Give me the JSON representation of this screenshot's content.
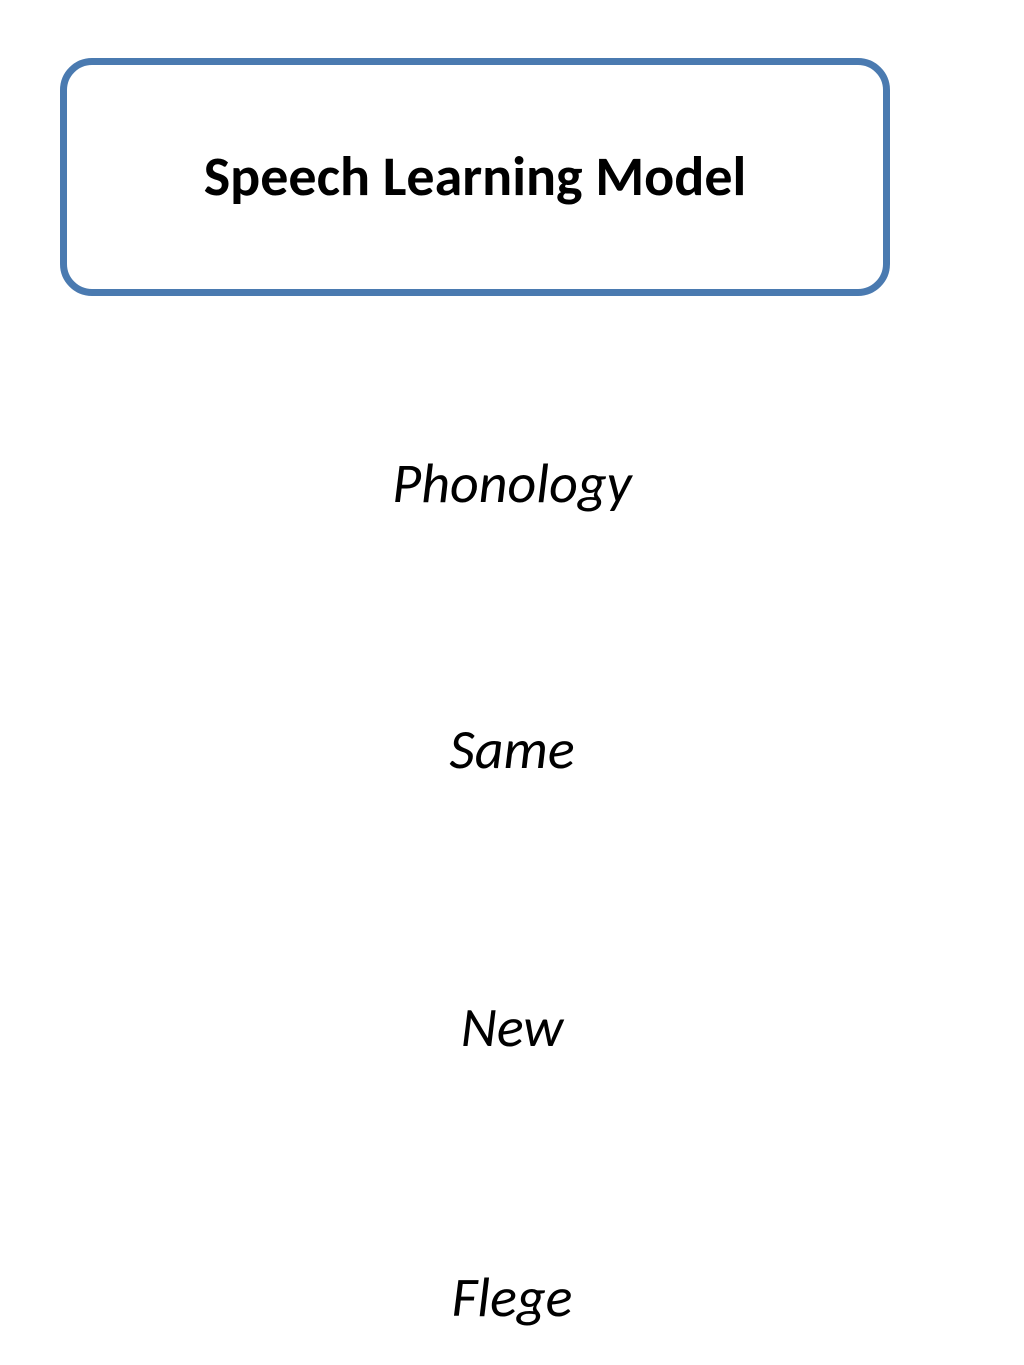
{
  "diagram": {
    "title": "Speech Learning Model",
    "terms": {
      "phonology": "Phonology",
      "same": "Same",
      "new": "New",
      "flege": "Flege"
    },
    "styling": {
      "box_border_color": "#4a7ab0",
      "box_border_width": 7,
      "box_border_radius": 32,
      "background_color": "#ffffff",
      "title_font_size": 56,
      "title_font_weight": 700,
      "term_font_size": 56,
      "term_font_style": "italic",
      "text_color": "#000000"
    }
  }
}
